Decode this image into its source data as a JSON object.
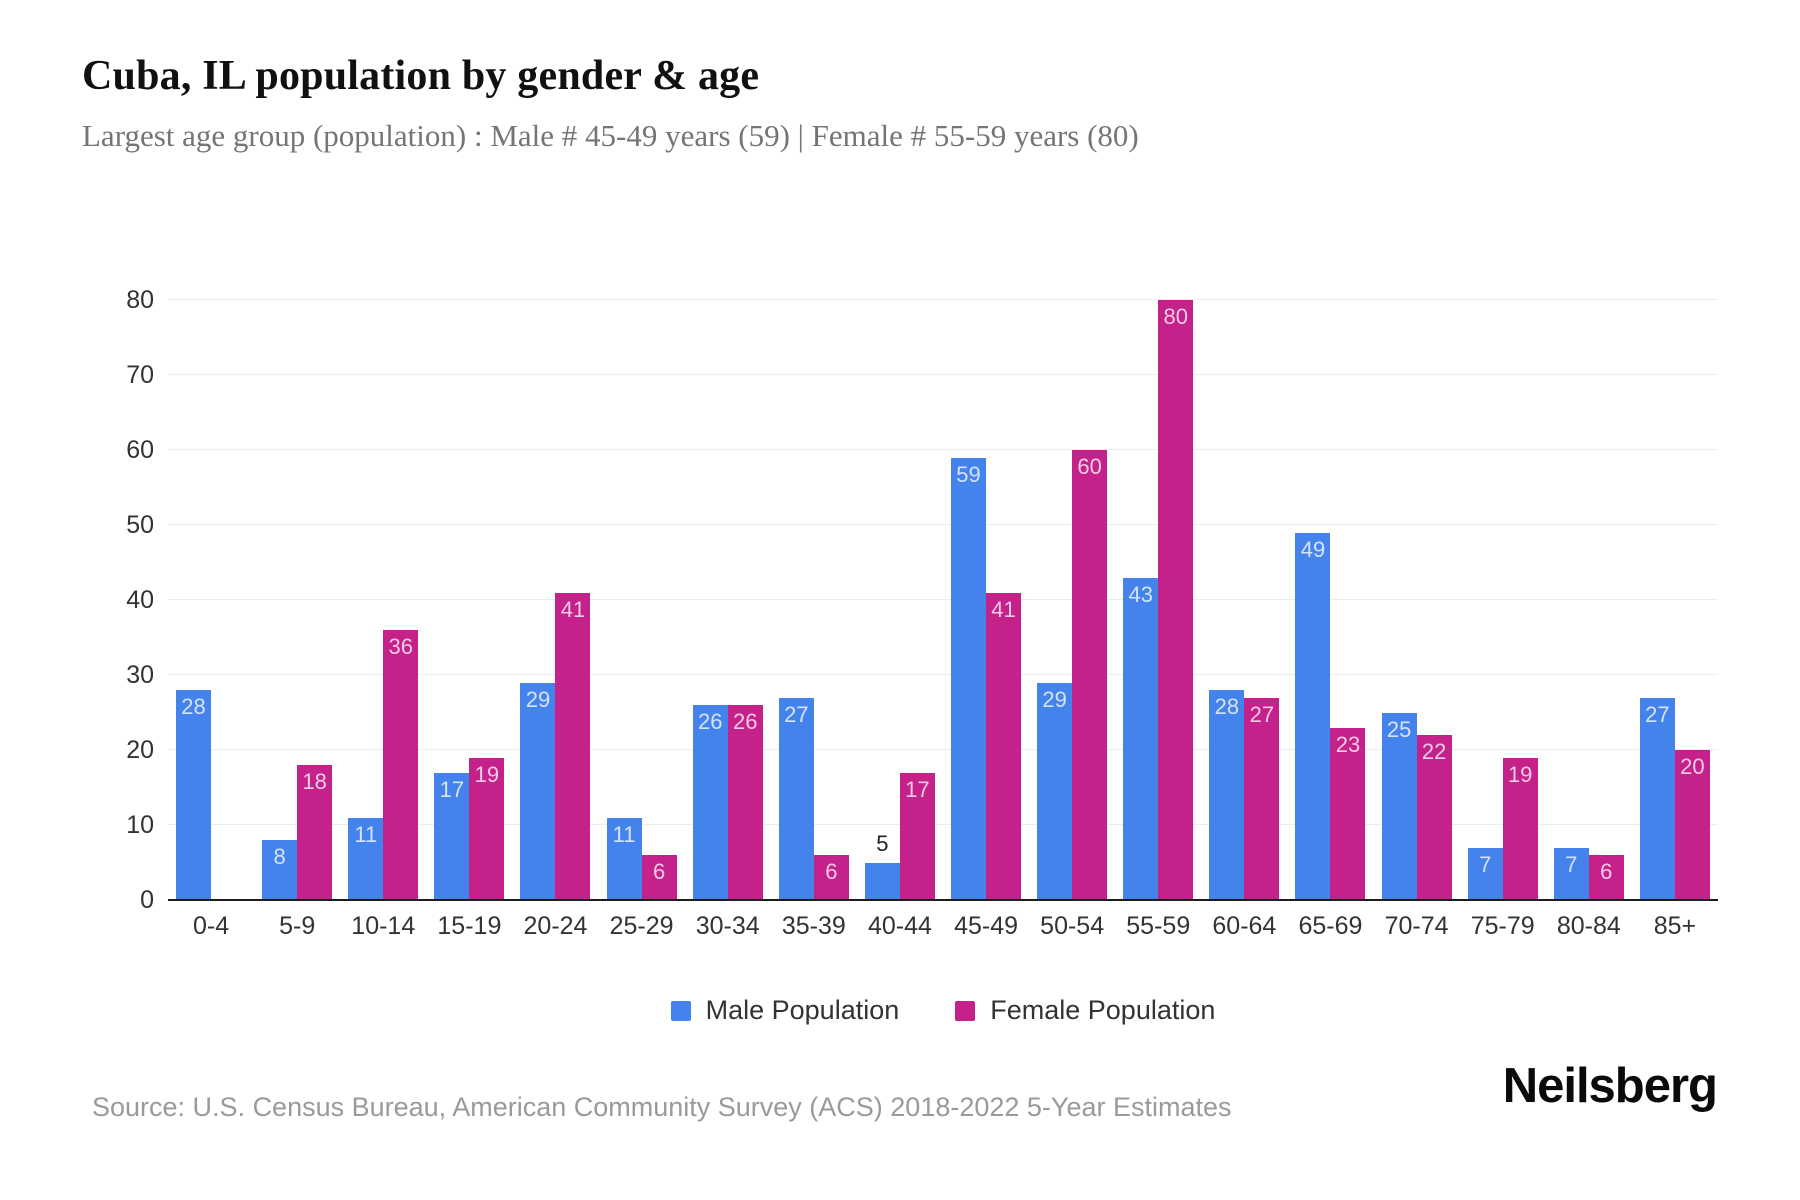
{
  "header": {
    "title": "Cuba, IL population by gender & age",
    "subtitle": "Largest age group (population) : Male # 45-49 years (59) | Female # 55-59 years (80)"
  },
  "chart_data": {
    "type": "bar",
    "title": "Cuba, IL population by gender & age",
    "categories": [
      "0-4",
      "5-9",
      "10-14",
      "15-19",
      "20-24",
      "25-29",
      "30-34",
      "35-39",
      "40-44",
      "45-49",
      "50-54",
      "55-59",
      "60-64",
      "65-69",
      "70-74",
      "75-79",
      "80-84",
      "85+"
    ],
    "series": [
      {
        "name": "Male Population",
        "color": "#4583EC",
        "label_color": "#d5e3f9",
        "values": [
          28,
          8,
          11,
          17,
          29,
          11,
          26,
          27,
          5,
          59,
          29,
          43,
          28,
          49,
          25,
          7,
          7,
          27
        ]
      },
      {
        "name": "Female Population",
        "color": "#C4218A",
        "label_color": "#f2cbe5",
        "values": [
          0,
          18,
          36,
          19,
          41,
          6,
          26,
          6,
          17,
          41,
          60,
          80,
          27,
          23,
          22,
          19,
          6,
          20
        ]
      }
    ],
    "ylim": [
      0,
      80
    ],
    "yticks": [
      0,
      10,
      20,
      30,
      40,
      50,
      60,
      70,
      80
    ],
    "grid": true,
    "legend_position": "bottom"
  },
  "footer": {
    "source": "Source: U.S. Census Bureau, American Community Survey (ACS) 2018-2022 5-Year Estimates",
    "brand": "Neilsberg"
  }
}
